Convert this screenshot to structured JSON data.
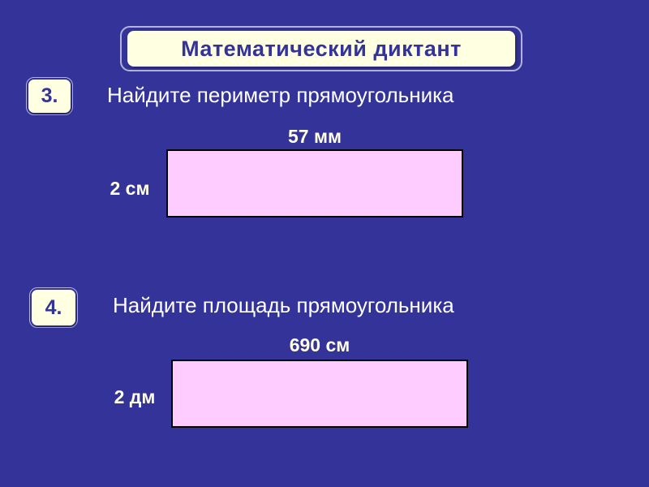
{
  "slide": {
    "title": "Математический диктант",
    "colors": {
      "background": "#333399",
      "panel": "#FFFFE1",
      "accent_text": "#333399",
      "question_text": "#FFFFFF",
      "rect_fill": "#FFCCFF",
      "rect_border": "#000000",
      "outline": "#B3B3D9"
    },
    "questions": [
      {
        "number": "3.",
        "text": "Найдите периметр прямоугольника",
        "width_label": "57 мм",
        "height_label": "2 см"
      },
      {
        "number": "4.",
        "text": "Найдите площадь прямоугольника",
        "width_label": "690 см",
        "height_label": "2 дм"
      }
    ]
  }
}
